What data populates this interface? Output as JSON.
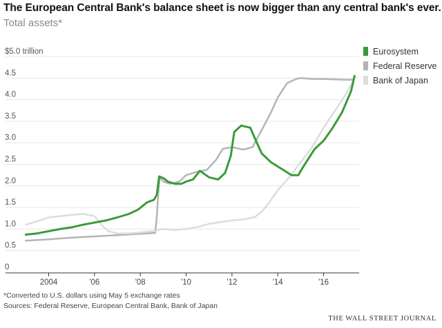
{
  "title": "The European Central Bank's balance sheet is now bigger than any central bank's ever.",
  "subtitle": "Total assets*",
  "footnote": "*Converted to U.S. dollars using May 5 exchange rates",
  "sources": "Sources: Federal Reserve, European Central Bank, Bank of Japan",
  "brand": "THE WALL STREET JOURNAL",
  "colors": {
    "eurosystem": "#3a9a3a",
    "fed": "#b4b4b4",
    "boj": "#dcdcdc",
    "axis": "#333333",
    "grid": "#e6e6e6"
  },
  "chart_data": {
    "type": "line",
    "title": "The European Central Bank's balance sheet is now bigger than any central bank's ever.",
    "ylabel": "Total assets* ($ trillion)",
    "xlabel": "",
    "xlim": [
      2002.9,
      2017.55
    ],
    "ylim": [
      0,
      5.0
    ],
    "yticks": [
      0,
      0.5,
      1.0,
      1.5,
      2.0,
      2.5,
      3.0,
      3.5,
      4.0,
      4.5,
      5.0
    ],
    "ytick_labels": [
      "0",
      "0.5",
      "1.0",
      "1.5",
      "2.0",
      "2.5",
      "3.0",
      "3.5",
      "4.0",
      "4.5",
      "$5.0 trillion"
    ],
    "xticks": [
      2004,
      2006,
      2008,
      2010,
      2012,
      2014,
      2016
    ],
    "xtick_labels": [
      "2004",
      "'06",
      "'08",
      "'10",
      "'12",
      "'14",
      "'16"
    ],
    "series": [
      {
        "name": "Federal Reserve",
        "color": "#b4b4b4",
        "x": [
          2003.0,
          2004.0,
          2005.0,
          2006.0,
          2007.0,
          2008.0,
          2008.65,
          2008.72,
          2008.78,
          2008.85,
          2009.0,
          2009.3,
          2009.7,
          2010.0,
          2010.5,
          2010.9,
          2011.3,
          2011.6,
          2012.0,
          2012.5,
          2012.9,
          2013.3,
          2013.7,
          2014.0,
          2014.4,
          2014.8,
          2015.0,
          2015.5,
          2016.0,
          2016.5,
          2017.0,
          2017.3
        ],
        "y": [
          0.73,
          0.76,
          0.8,
          0.83,
          0.86,
          0.89,
          0.91,
          1.3,
          1.8,
          2.2,
          2.1,
          2.05,
          2.1,
          2.25,
          2.33,
          2.37,
          2.6,
          2.86,
          2.9,
          2.84,
          2.9,
          3.3,
          3.7,
          4.05,
          4.38,
          4.48,
          4.5,
          4.48,
          4.48,
          4.47,
          4.46,
          4.46
        ]
      },
      {
        "name": "Bank of Japan",
        "color": "#dcdcdc",
        "x": [
          2003.0,
          2003.5,
          2004.0,
          2004.5,
          2005.0,
          2005.5,
          2006.0,
          2006.3,
          2006.6,
          2007.0,
          2007.5,
          2008.0,
          2008.5,
          2009.0,
          2009.5,
          2010.0,
          2010.5,
          2011.0,
          2011.5,
          2012.0,
          2012.5,
          2013.0,
          2013.3,
          2013.6,
          2014.0,
          2014.5,
          2015.0,
          2015.5,
          2016.0,
          2016.5,
          2017.0,
          2017.3
        ],
        "y": [
          1.1,
          1.18,
          1.27,
          1.3,
          1.33,
          1.35,
          1.3,
          1.1,
          0.95,
          0.9,
          0.9,
          0.92,
          0.95,
          1.0,
          0.98,
          1.0,
          1.05,
          1.12,
          1.16,
          1.2,
          1.22,
          1.28,
          1.4,
          1.6,
          1.9,
          2.2,
          2.55,
          2.9,
          3.35,
          3.75,
          4.15,
          4.45
        ]
      },
      {
        "name": "Eurosystem",
        "color": "#3a9a3a",
        "x": [
          2003.0,
          2003.5,
          2004.0,
          2004.5,
          2005.0,
          2005.5,
          2006.0,
          2006.5,
          2007.0,
          2007.5,
          2007.9,
          2008.3,
          2008.6,
          2008.72,
          2008.82,
          2009.0,
          2009.2,
          2009.5,
          2009.8,
          2010.0,
          2010.3,
          2010.6,
          2011.0,
          2011.4,
          2011.7,
          2011.95,
          2012.1,
          2012.4,
          2012.8,
          2013.0,
          2013.3,
          2013.7,
          2014.0,
          2014.3,
          2014.6,
          2014.9,
          2015.0,
          2015.3,
          2015.6,
          2016.0,
          2016.4,
          2016.8,
          2017.0,
          2017.2,
          2017.35
        ],
        "y": [
          0.87,
          0.9,
          0.95,
          1.0,
          1.04,
          1.1,
          1.15,
          1.2,
          1.27,
          1.35,
          1.45,
          1.62,
          1.68,
          1.8,
          2.22,
          2.18,
          2.1,
          2.05,
          2.05,
          2.1,
          2.15,
          2.35,
          2.2,
          2.15,
          2.3,
          2.7,
          3.25,
          3.4,
          3.35,
          3.1,
          2.75,
          2.55,
          2.45,
          2.35,
          2.25,
          2.25,
          2.35,
          2.6,
          2.85,
          3.05,
          3.35,
          3.7,
          3.95,
          4.2,
          4.55
        ]
      }
    ],
    "legend": [
      "Eurosystem",
      "Federal Reserve",
      "Bank of Japan"
    ],
    "legend_position": "top-right"
  }
}
